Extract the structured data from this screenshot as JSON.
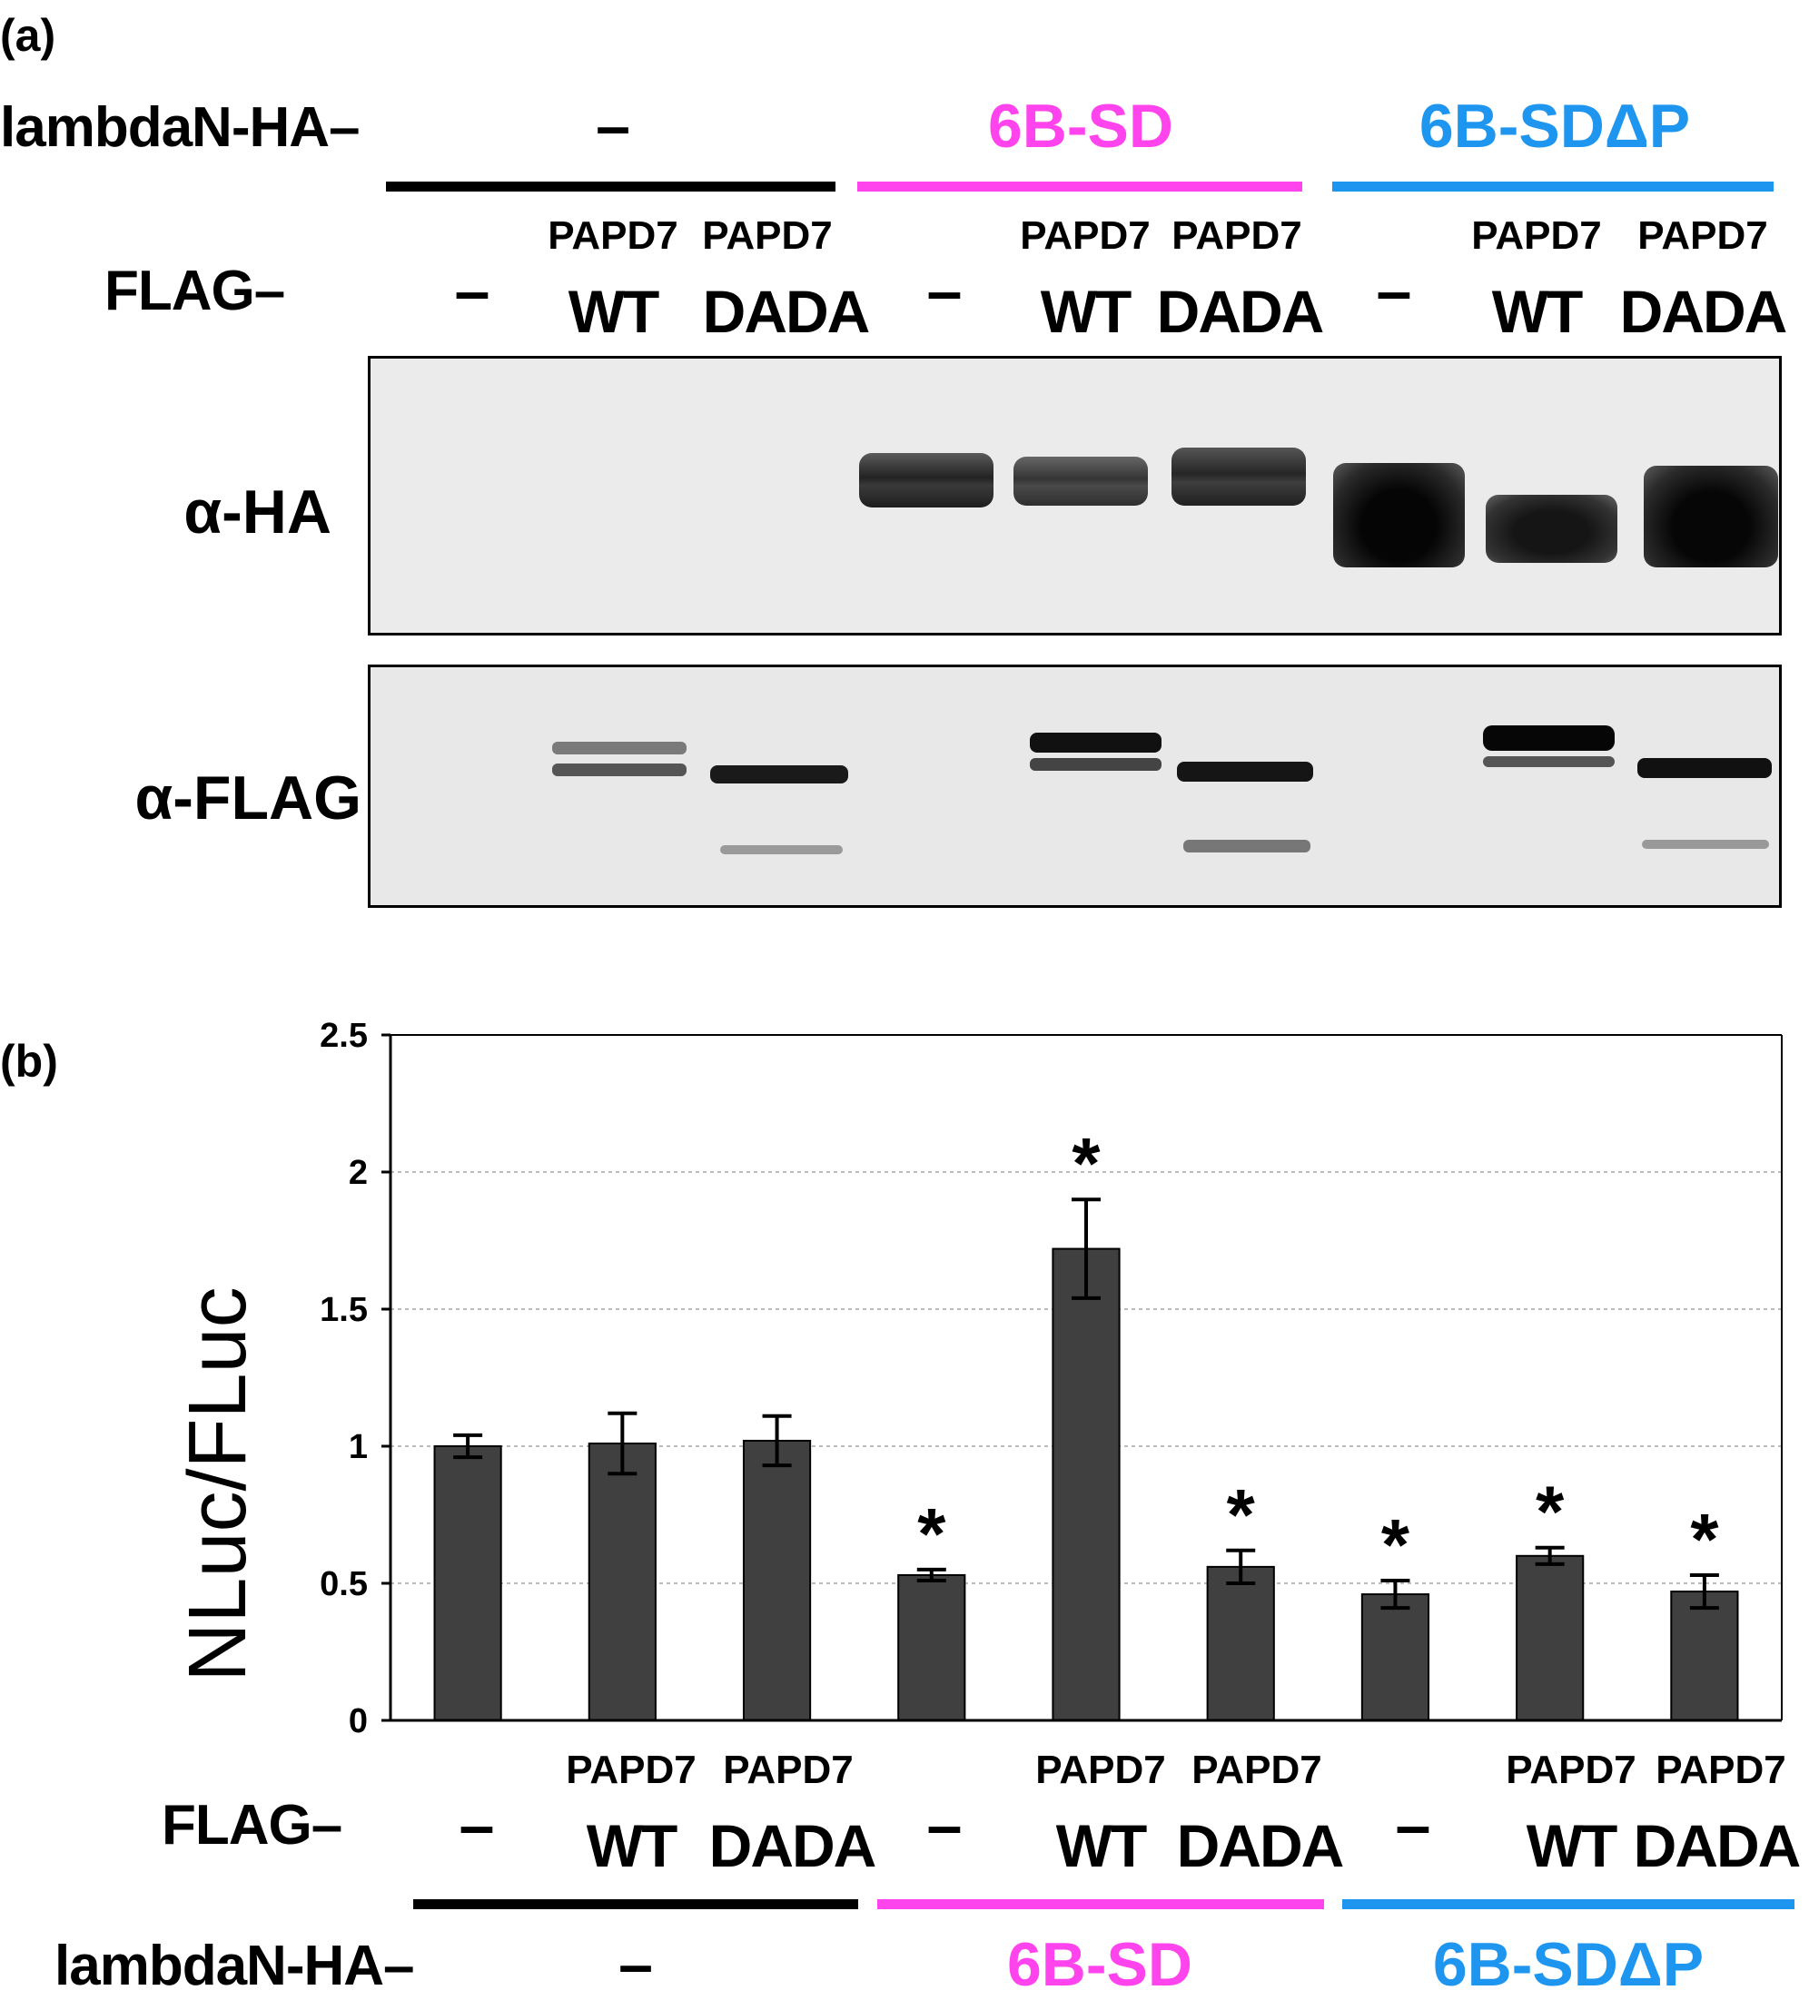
{
  "panel_a": {
    "label": "(a)",
    "lambdaN_label": "lambdaN-HA–",
    "flag_label": "FLAG–",
    "groups": [
      {
        "label": "–",
        "color": "#000000"
      },
      {
        "label": "6B-SD",
        "color": "#ff44ee"
      },
      {
        "label": "6B-SDΔP",
        "color": "#1e96f0"
      }
    ],
    "lanes": [
      {
        "top": "",
        "bottom": "–"
      },
      {
        "top": "PAPD7",
        "bottom": "WT"
      },
      {
        "top": "PAPD7",
        "bottom": "DADA"
      },
      {
        "top": "",
        "bottom": "–"
      },
      {
        "top": "PAPD7",
        "bottom": "WT"
      },
      {
        "top": "PAPD7",
        "bottom": "DADA"
      },
      {
        "top": "",
        "bottom": "–"
      },
      {
        "top": "PAPD7",
        "bottom": "WT"
      },
      {
        "top": "PAPD7",
        "bottom": "DADA"
      }
    ],
    "blots": [
      {
        "antibody": "α-HA"
      },
      {
        "antibody": "α-FLAG"
      }
    ]
  },
  "panel_b": {
    "label": "(b)",
    "flag_label": "FLAG–",
    "lambdaN_label": "lambdaN-HA–",
    "lanes": [
      {
        "top": "",
        "bottom": "–"
      },
      {
        "top": "PAPD7",
        "bottom": "WT"
      },
      {
        "top": "PAPD7",
        "bottom": "DADA"
      },
      {
        "top": "",
        "bottom": "–"
      },
      {
        "top": "PAPD7",
        "bottom": "WT"
      },
      {
        "top": "PAPD7",
        "bottom": "DADA"
      },
      {
        "top": "",
        "bottom": "–"
      },
      {
        "top": "PAPD7",
        "bottom": "WT"
      },
      {
        "top": "PAPD7",
        "bottom": "DADA"
      }
    ],
    "groups": [
      {
        "label": "–",
        "color": "#000000"
      },
      {
        "label": "6B-SD",
        "color": "#ff44ee"
      },
      {
        "label": "6B-SDΔP",
        "color": "#1e96f0"
      }
    ]
  },
  "chart_data": {
    "type": "bar",
    "ylabel": "NLuc/FLuc",
    "ylim": [
      0,
      2.5
    ],
    "yticks": [
      "0",
      "0.5",
      "1",
      "1.5",
      "2",
      "2.5"
    ],
    "grid": true,
    "bar_color": "#404040",
    "significance_marker": "*",
    "series": [
      {
        "values": [
          1.0,
          1.01,
          1.02,
          0.53,
          1.72,
          0.56,
          0.46,
          0.6,
          0.47
        ],
        "errors": [
          0.04,
          0.11,
          0.09,
          0.02,
          0.18,
          0.06,
          0.05,
          0.03,
          0.06
        ],
        "significant": [
          false,
          false,
          false,
          true,
          true,
          true,
          true,
          true,
          true
        ]
      }
    ]
  }
}
